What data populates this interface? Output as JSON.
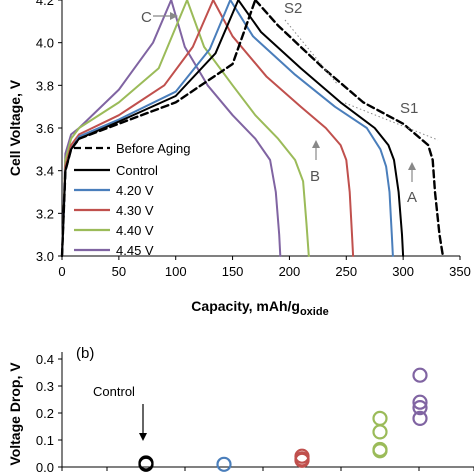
{
  "chart_data": [
    {
      "type": "line",
      "xlabel": "Capacity, mAh/g",
      "xlabel_sub": "oxide",
      "ylabel": "Cell Voltage, V",
      "xlim": [
        0,
        350
      ],
      "ylim": [
        3.0,
        4.2
      ],
      "xticks": [
        0,
        50,
        100,
        150,
        200,
        250,
        300,
        350
      ],
      "yticks": [
        3.0,
        3.2,
        3.4,
        3.6,
        3.8,
        4.0,
        4.2
      ],
      "ytick_labels": [
        "3.0",
        "3.2",
        "3.4",
        "3.6",
        "3.8",
        "4.0",
        "4.2"
      ],
      "grid": false,
      "legend": "bottom-left",
      "annotations": {
        "S1": "S1",
        "S2": "S2",
        "A": "A",
        "B": "B",
        "C": "C"
      },
      "series": [
        {
          "name": "Before Aging",
          "color": "#000000",
          "dash": true,
          "charge": [
            [
              0,
              3.0
            ],
            [
              3,
              3.4
            ],
            [
              8,
              3.5
            ],
            [
              15,
              3.55
            ],
            [
              50,
              3.62
            ],
            [
              100,
              3.72
            ],
            [
              150,
              3.9
            ],
            [
              170,
              4.2
            ]
          ],
          "discharge": [
            [
              170,
              4.2
            ],
            [
              190,
              4.08
            ],
            [
              230,
              3.88
            ],
            [
              265,
              3.72
            ],
            [
              300,
              3.62
            ],
            [
              322,
              3.52
            ],
            [
              326,
              3.45
            ],
            [
              328,
              3.3
            ],
            [
              332,
              3.1
            ],
            [
              335,
              3.0
            ]
          ]
        },
        {
          "name": "Control",
          "color": "#000000",
          "dash": false,
          "charge": [
            [
              0,
              3.0
            ],
            [
              3,
              3.4
            ],
            [
              8,
              3.5
            ],
            [
              15,
              3.55
            ],
            [
              50,
              3.63
            ],
            [
              100,
              3.75
            ],
            [
              135,
              3.95
            ],
            [
              155,
              4.2
            ]
          ],
          "discharge": [
            [
              155,
              4.2
            ],
            [
              175,
              4.05
            ],
            [
              210,
              3.88
            ],
            [
              245,
              3.72
            ],
            [
              275,
              3.6
            ],
            [
              287,
              3.52
            ],
            [
              292,
              3.45
            ],
            [
              296,
              3.3
            ],
            [
              299,
              3.1
            ],
            [
              300,
              3.0
            ]
          ]
        },
        {
          "name": "4.20 V",
          "color": "#4a7ebb",
          "dash": false,
          "charge": [
            [
              0,
              3.0
            ],
            [
              3,
              3.4
            ],
            [
              8,
              3.5
            ],
            [
              15,
              3.56
            ],
            [
              50,
              3.64
            ],
            [
              100,
              3.77
            ],
            [
              130,
              3.97
            ],
            [
              148,
              4.2
            ]
          ],
          "discharge": [
            [
              148,
              4.2
            ],
            [
              168,
              4.03
            ],
            [
              205,
              3.85
            ],
            [
              240,
              3.7
            ],
            [
              268,
              3.6
            ],
            [
              280,
              3.5
            ],
            [
              285,
              3.42
            ],
            [
              288,
              3.3
            ],
            [
              290,
              3.1
            ],
            [
              291,
              3.0
            ]
          ]
        },
        {
          "name": "4.30 V",
          "color": "#c0504d",
          "dash": false,
          "charge": [
            [
              0,
              3.0
            ],
            [
              3,
              3.42
            ],
            [
              8,
              3.52
            ],
            [
              15,
              3.57
            ],
            [
              50,
              3.66
            ],
            [
              90,
              3.8
            ],
            [
              115,
              3.98
            ],
            [
              133,
              4.2
            ]
          ],
          "discharge": [
            [
              133,
              4.2
            ],
            [
              150,
              4.03
            ],
            [
              180,
              3.84
            ],
            [
              210,
              3.7
            ],
            [
              232,
              3.6
            ],
            [
              245,
              3.52
            ],
            [
              250,
              3.45
            ],
            [
              253,
              3.3
            ],
            [
              255,
              3.1
            ],
            [
              256,
              3.0
            ]
          ]
        },
        {
          "name": "4.40 V",
          "color": "#9bbb59",
          "dash": false,
          "charge": [
            [
              0,
              3.0
            ],
            [
              3,
              3.45
            ],
            [
              8,
              3.55
            ],
            [
              15,
              3.6
            ],
            [
              50,
              3.72
            ],
            [
              85,
              3.88
            ],
            [
              110,
              4.2
            ]
          ],
          "discharge": [
            [
              110,
              4.2
            ],
            [
              125,
              3.98
            ],
            [
              150,
              3.8
            ],
            [
              170,
              3.66
            ],
            [
              190,
              3.55
            ],
            [
              205,
              3.45
            ],
            [
              212,
              3.35
            ],
            [
              215,
              3.15
            ],
            [
              217,
              3.0
            ]
          ]
        },
        {
          "name": "4.45 V",
          "color": "#8064a2",
          "dash": false,
          "charge": [
            [
              0,
              3.0
            ],
            [
              3,
              3.48
            ],
            [
              8,
              3.57
            ],
            [
              15,
              3.6
            ],
            [
              50,
              3.78
            ],
            [
              80,
              4.0
            ],
            [
              96,
              4.2
            ]
          ],
          "discharge": [
            [
              96,
              4.2
            ],
            [
              108,
              3.98
            ],
            [
              128,
              3.8
            ],
            [
              150,
              3.66
            ],
            [
              170,
              3.55
            ],
            [
              183,
              3.45
            ],
            [
              188,
              3.3
            ],
            [
              191,
              3.1
            ],
            [
              192,
              3.0
            ]
          ]
        }
      ]
    },
    {
      "type": "scatter",
      "label": "(b)",
      "ylabel": "Voltage Drop, V",
      "ylim": [
        0.0,
        0.4
      ],
      "yticks": [
        0.0,
        0.1,
        0.2,
        0.3,
        0.4
      ],
      "ytick_labels": [
        "0.0",
        "0.1",
        "0.2",
        "0.3",
        "0.4"
      ],
      "annotation": "Control",
      "groups": [
        {
          "color": "#000000",
          "values": [
            0.01,
            0.015
          ]
        },
        {
          "color": "#4a7ebb",
          "values": [
            0.01
          ]
        },
        {
          "color": "#c0504d",
          "values": [
            0.025,
            0.03,
            0.04
          ]
        },
        {
          "color": "#9bbb59",
          "values": [
            0.06,
            0.065,
            0.13,
            0.18
          ]
        },
        {
          "color": "#8064a2",
          "values": [
            0.18,
            0.22,
            0.24,
            0.34
          ]
        }
      ]
    }
  ]
}
